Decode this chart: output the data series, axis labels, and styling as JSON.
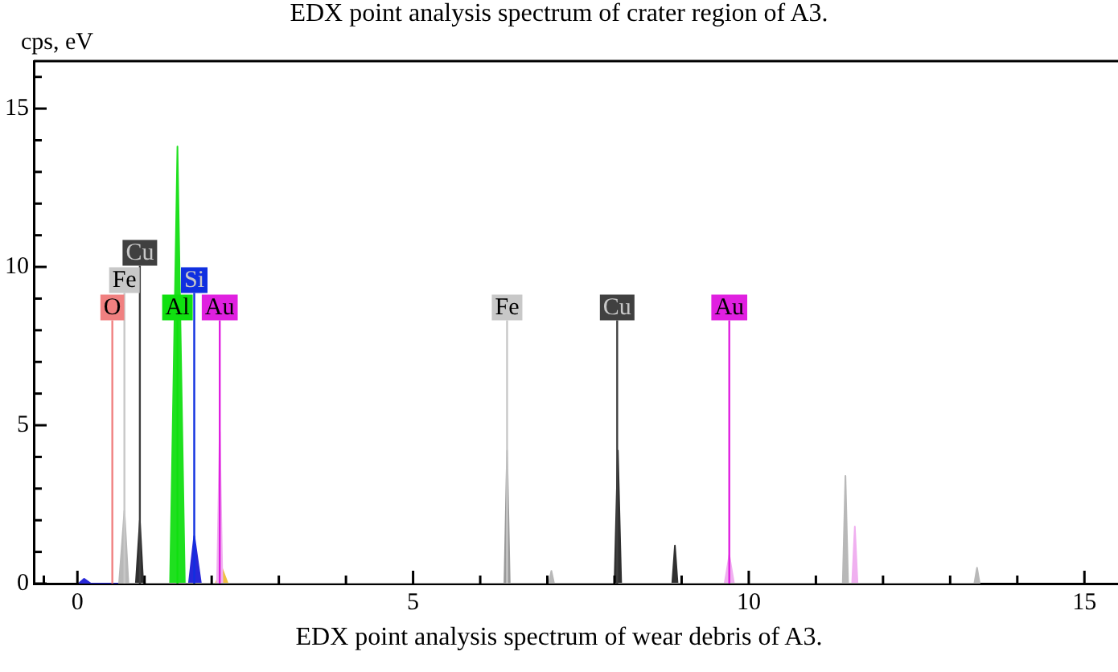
{
  "chart_data": {
    "type": "area",
    "title": "EDX point analysis spectrum of crater region of A3.",
    "ylabel": "cps, eV",
    "annotations": [
      "EDX point analysis spectrum of wear debris of A3."
    ],
    "xlim": [
      -0.65,
      15.5
    ],
    "xticks": [
      {
        "value": -0.5,
        "label": null
      },
      0,
      {
        "value": 1,
        "label": null
      },
      {
        "value": 2,
        "label": null
      },
      {
        "value": 3,
        "label": null
      },
      {
        "value": 4,
        "label": null
      },
      5,
      {
        "value": 6,
        "label": null
      },
      {
        "value": 7,
        "label": null
      },
      {
        "value": 8,
        "label": null
      },
      {
        "value": 9,
        "label": null
      },
      10,
      {
        "value": 11,
        "label": null
      },
      {
        "value": 12,
        "label": null
      },
      {
        "value": 13,
        "label": null
      },
      {
        "value": 14,
        "label": null
      },
      15
    ],
    "ylim": [
      0,
      16.5
    ],
    "yticks": [
      0,
      {
        "value": 1,
        "label": null
      },
      {
        "value": 2,
        "label": null
      },
      {
        "value": 3,
        "label": null
      },
      {
        "value": 4,
        "label": null
      },
      5,
      {
        "value": 6,
        "label": null
      },
      {
        "value": 7,
        "label": null
      },
      {
        "value": 8,
        "label": null
      },
      {
        "value": 9,
        "label": null
      },
      10,
      {
        "value": 11,
        "label": null
      },
      {
        "value": 12,
        "label": null
      },
      {
        "value": 13,
        "label": null
      },
      {
        "value": 14,
        "label": null
      },
      15,
      {
        "value": 16,
        "label": null
      }
    ],
    "marker": "none",
    "series": [
      {
        "color": "#b8b8b8",
        "x": [
          0.62,
          0.7,
          0.76,
          7.02,
          7.06,
          7.1,
          11.4,
          11.44,
          11.48,
          13.36,
          13.4,
          13.44
        ],
        "values": [
          0,
          2.3,
          0,
          0,
          0.4,
          0,
          0,
          3.4,
          0,
          0,
          0.5,
          0
        ]
      },
      {
        "color": "#9a9a9a",
        "x": [
          6.36,
          6.4,
          6.44
        ],
        "values": [
          0,
          4.2,
          0
        ]
      },
      {
        "color": "#303030",
        "x": [
          0.87,
          0.93,
          0.98,
          8.0,
          8.05,
          8.1,
          8.86,
          8.9,
          8.94
        ],
        "values": [
          0,
          2.0,
          0,
          0,
          4.2,
          0,
          0,
          1.2,
          0
        ]
      },
      {
        "color": "#1fe01f",
        "x": [
          1.38,
          1.49,
          1.6
        ],
        "values": [
          0,
          13.8,
          0
        ]
      },
      {
        "color": "#2828d8",
        "x": [
          0.02,
          0.1,
          0.2,
          1.66,
          1.74,
          1.84
        ],
        "values": [
          0,
          0.15,
          0,
          0,
          1.5,
          0
        ]
      },
      {
        "color": "#f0b0f0",
        "x": [
          2.08,
          2.12,
          2.16,
          9.64,
          9.71,
          9.78,
          11.54,
          11.58,
          11.62
        ],
        "values": [
          0,
          4.8,
          0,
          0,
          0.9,
          0,
          0,
          1.8,
          0
        ]
      },
      {
        "color": "#f0c040",
        "x": [
          2.06,
          2.15,
          2.24
        ],
        "values": [
          0,
          0.5,
          0
        ]
      }
    ],
    "ref_lines": [
      {
        "axis": "x",
        "value": 0.52,
        "label": "O",
        "color": "#f08080"
      },
      {
        "axis": "x",
        "value": 0.7,
        "label": "Fe",
        "color": "#c8c8c8"
      },
      {
        "axis": "x",
        "value": 0.93,
        "label": "Cu",
        "color": "#404040"
      },
      {
        "axis": "x",
        "value": 1.49,
        "label": "Al",
        "color": "#10e010"
      },
      {
        "axis": "x",
        "value": 1.74,
        "label": "Si",
        "color": "#1030e0"
      },
      {
        "axis": "x",
        "value": 2.12,
        "label": "Au",
        "color": "#e020e0"
      },
      {
        "axis": "x",
        "value": 6.4,
        "label": "Fe",
        "color": "#c8c8c8"
      },
      {
        "axis": "x",
        "value": 8.04,
        "label": "Cu",
        "color": "#404040"
      },
      {
        "axis": "x",
        "value": 9.71,
        "label": "Au",
        "color": "#e020e0"
      }
    ]
  }
}
